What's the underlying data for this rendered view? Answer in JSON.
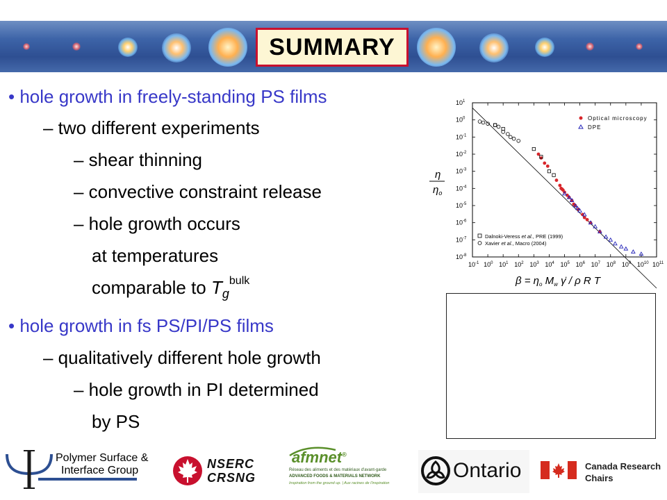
{
  "slide": {
    "title": "SUMMARY"
  },
  "content": {
    "bullet1": "• hole growth in freely-standing PS films",
    "sub1": "– two different experiments",
    "sub1a": "– shear thinning",
    "sub1b": "– convective constraint release",
    "sub1c": "– hole growth occurs",
    "sub1c_line2": "at temperatures",
    "sub1c_line3_prefix": "comparable to ",
    "sub1c_T": "T",
    "sub1c_g": "g",
    "sub1c_bulk": "bulk",
    "bullet2": "• hole growth in fs PS/PI/PS films",
    "sub2": "– qualitatively different hole growth",
    "sub2a": "– hole growth in PI determined",
    "sub2a_line2": "by PS"
  },
  "chart_data": {
    "type": "scatter",
    "x_scale": "log",
    "y_scale": "log",
    "xlim": [
      0.1,
      100000000000
    ],
    "ylim": [
      1e-08,
      10
    ],
    "x_ticks": [
      "10",
      "10",
      "10",
      "10",
      "10",
      "10",
      "10",
      "10",
      "10",
      "10",
      "10",
      "10",
      "10"
    ],
    "x_tick_exponents": [
      "-1",
      "0",
      "1",
      "2",
      "3",
      "4",
      "5",
      "6",
      "7",
      "8",
      "9",
      "10",
      "11"
    ],
    "y_ticks": [
      "10",
      "10",
      "10",
      "10",
      "10",
      "10",
      "10",
      "10",
      "10",
      "10"
    ],
    "y_tick_exponents": [
      "1",
      "0",
      "-1",
      "-2",
      "-3",
      "-4",
      "-5",
      "-6",
      "-7",
      "-8"
    ],
    "ylabel_num": "η",
    "ylabel_den": "η",
    "ylabel_den_sub": "o",
    "xlabel_parts": [
      "β = η",
      "o",
      " M",
      "w",
      " γ̇ / ρ R T"
    ],
    "legend_top": [
      {
        "label": "Optical microscopy",
        "marker": "filled-circle",
        "color": "#d8262b"
      },
      {
        "label": "DPE",
        "marker": "open-triangle",
        "color": "#2323b8"
      }
    ],
    "legend_bottom": [
      {
        "label_parts": [
          "Dalnoki-Veress ",
          "et al.",
          ", PRE (1999)"
        ],
        "marker": "open-square"
      },
      {
        "label_parts": [
          "Xavier ",
          "et al.",
          ", Macro (2004)"
        ],
        "marker": "open-circle"
      }
    ],
    "series": [
      {
        "name": "Optical microscopy",
        "marker": "filled-circle",
        "color": "#d8262b",
        "points": [
          [
            2000,
            0.01
          ],
          [
            3000,
            0.006
          ],
          [
            5000,
            0.003
          ],
          [
            8000,
            0.002
          ],
          [
            30000,
            0.0003
          ],
          [
            50000,
            0.00015
          ],
          [
            60000,
            0.0001
          ],
          [
            70000,
            9e-05
          ],
          [
            80000,
            8e-05
          ],
          [
            100000,
            6e-05
          ],
          [
            150000,
            4e-05
          ],
          [
            200000,
            3e-05
          ],
          [
            300000,
            2e-05
          ],
          [
            400000,
            1.2e-05
          ],
          [
            500000,
            1e-05
          ],
          [
            800000,
            6e-06
          ],
          [
            1500000,
            3e-06
          ],
          [
            2000000,
            2e-06
          ],
          [
            3000000,
            1.5e-06
          ],
          [
            5000000,
            1e-06
          ],
          [
            20000000,
            3e-07
          ]
        ]
      },
      {
        "name": "DPE",
        "marker": "open-triangle",
        "color": "#2323b8",
        "points": [
          [
            100000,
            5e-05
          ],
          [
            200000,
            3e-05
          ],
          [
            300000,
            2e-05
          ],
          [
            500000,
            1e-05
          ],
          [
            700000,
            7e-06
          ],
          [
            1000000,
            5e-06
          ],
          [
            2000000,
            3e-06
          ],
          [
            5000000,
            1e-06
          ],
          [
            10000000,
            6e-07
          ],
          [
            20000000,
            3e-07
          ],
          [
            50000000,
            1.5e-07
          ],
          [
            100000000,
            1e-07
          ],
          [
            200000000,
            6e-08
          ],
          [
            500000000,
            4e-08
          ],
          [
            1000000000,
            3e-08
          ],
          [
            3000000000,
            2e-08
          ],
          [
            10000000000,
            1.5e-08
          ]
        ]
      },
      {
        "name": "Dalnoki-Veress et al., PRE (1999)",
        "marker": "open-square",
        "color": "#000000",
        "points": [
          [
            3,
            0.5
          ],
          [
            10,
            0.3
          ],
          [
            1000,
            0.02
          ],
          [
            3000,
            0.007
          ],
          [
            10000,
            0.001
          ],
          [
            20000,
            0.0006
          ]
        ]
      },
      {
        "name": "Xavier et al., Macro (2004)",
        "marker": "open-circle",
        "color": "#000000",
        "points": [
          [
            0.3,
            0.8
          ],
          [
            0.5,
            0.7
          ],
          [
            1,
            0.6
          ],
          [
            3,
            0.5
          ],
          [
            5,
            0.4
          ],
          [
            10,
            0.2
          ],
          [
            20,
            0.15
          ],
          [
            30,
            0.1
          ],
          [
            50,
            0.08
          ],
          [
            100,
            0.06
          ]
        ]
      }
    ],
    "fit_line": [
      [
        0.1,
        5
      ],
      [
        100000000000,
        1.5e-10
      ]
    ]
  },
  "footer": {
    "psi_group_line1": "Polymer Surface &",
    "psi_group_line2": "Interface Group",
    "nserc_line1": "NSERC",
    "nserc_line2": "CRSNG",
    "afmnet_logo": "afmnet",
    "afmnet_sup": "®",
    "afmnet_line1": "Réseau des aliments et des matériaux d'avant-garde",
    "afmnet_line2": "ADVANCED FOODS & MATERIALS NETWORK",
    "afmnet_line3": "Inspiration from the ground up. | Aux racines de l'inspiration",
    "ontario": "Ontario",
    "crc_line1": "Canada Research",
    "crc_line2": "Chairs"
  },
  "colors": {
    "banner_blue": "#2e4f92",
    "title_border": "#c8102e",
    "title_fill": "#fdf6d4",
    "bullet_blue": "#3838c8",
    "nserc_red": "#c8102e",
    "afm_green": "#5a8f2a"
  }
}
